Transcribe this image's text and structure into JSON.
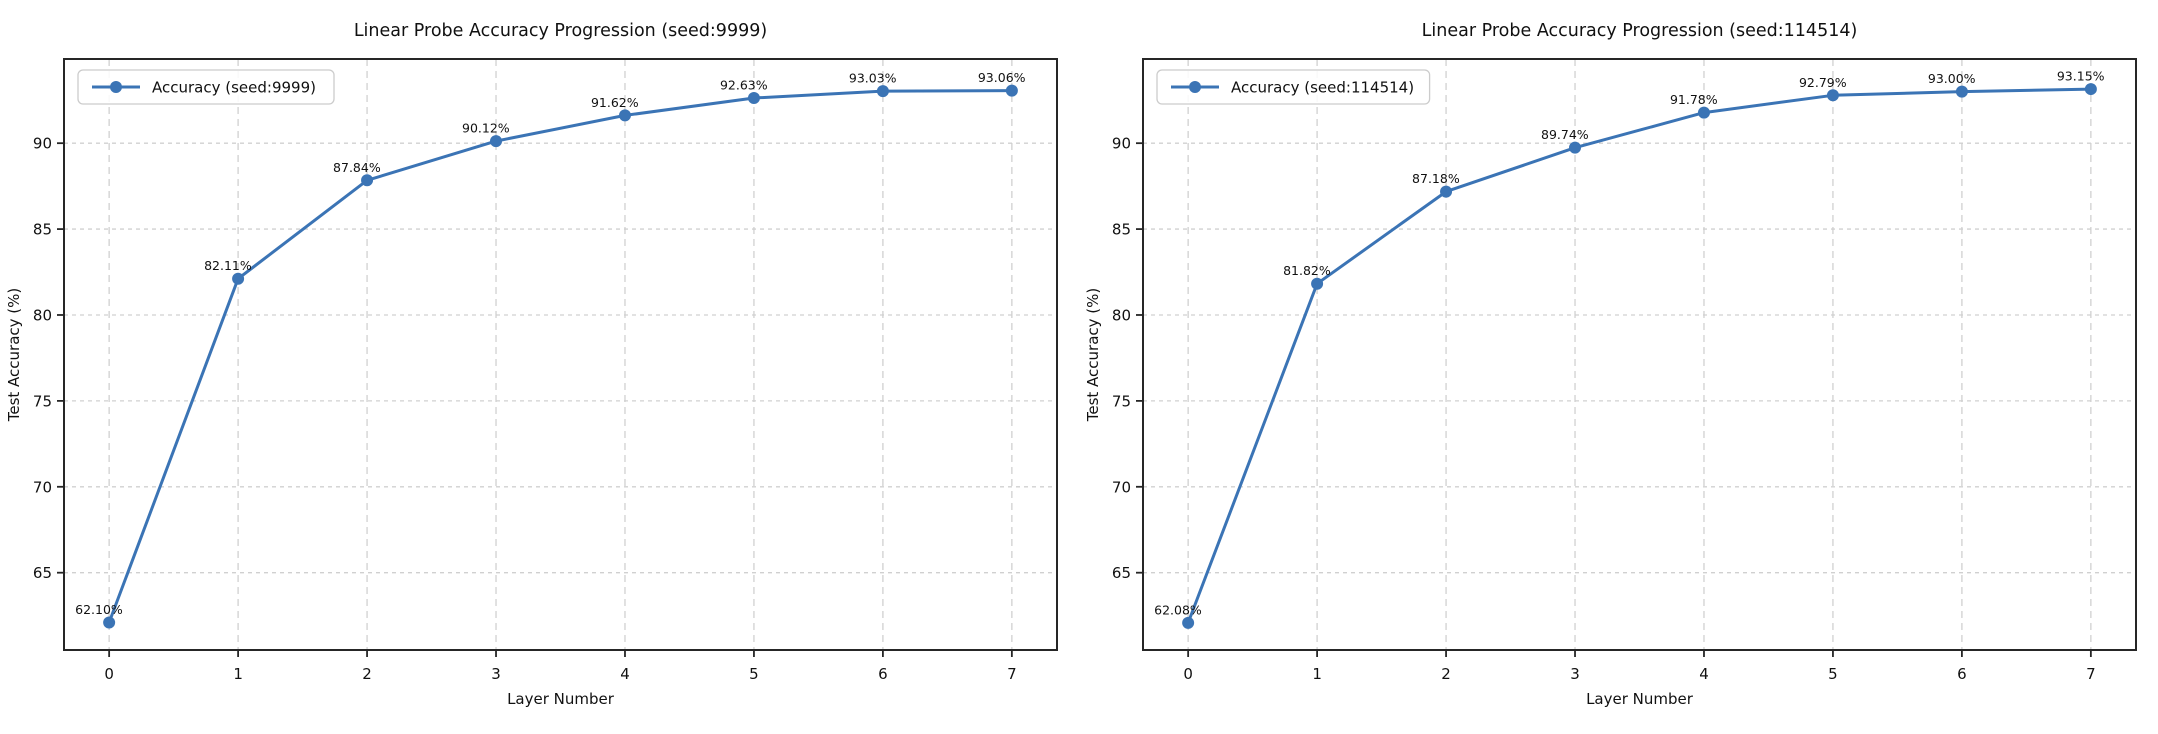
{
  "figure": {
    "background": "#ffffff"
  },
  "colors": {
    "line": "#3b74b5",
    "marker": "#3b74b5",
    "grid": "#d0d0d0",
    "spine": "#262626",
    "text": "#111111",
    "legend_border": "#cccccc",
    "legend_background": "#ffffff"
  },
  "chart_data": [
    {
      "type": "line",
      "title": "Linear Probe Accuracy Progression (seed:9999)",
      "xlabel": "Layer Number",
      "ylabel": "Test Accuracy (%)",
      "grid": true,
      "legend_position": "upper-left",
      "x": [
        0,
        1,
        2,
        3,
        4,
        5,
        6,
        7
      ],
      "xticks": [
        0,
        1,
        2,
        3,
        4,
        5,
        6,
        7
      ],
      "yticks": [
        65,
        70,
        75,
        80,
        85,
        90
      ],
      "xlim": [
        -0.35,
        7.35
      ],
      "ylim": [
        60.5,
        94.9
      ],
      "series": [
        {
          "name": "Accuracy (seed:9999)",
          "values": [
            62.1,
            82.11,
            87.84,
            90.12,
            91.62,
            92.63,
            93.03,
            93.06
          ]
        }
      ],
      "point_labels": [
        "62.10%",
        "82.11%",
        "87.84%",
        "90.12%",
        "91.62%",
        "92.63%",
        "93.03%",
        "93.06%"
      ]
    },
    {
      "type": "line",
      "title": "Linear Probe Accuracy Progression (seed:114514)",
      "xlabel": "Layer Number",
      "ylabel": "Test Accuracy (%)",
      "grid": true,
      "legend_position": "upper-left",
      "x": [
        0,
        1,
        2,
        3,
        4,
        5,
        6,
        7
      ],
      "xticks": [
        0,
        1,
        2,
        3,
        4,
        5,
        6,
        7
      ],
      "yticks": [
        65,
        70,
        75,
        80,
        85,
        90
      ],
      "xlim": [
        -0.35,
        7.35
      ],
      "ylim": [
        60.5,
        94.9
      ],
      "series": [
        {
          "name": "Accuracy (seed:114514)",
          "values": [
            62.08,
            81.82,
            87.18,
            89.74,
            91.78,
            92.79,
            93.0,
            93.15
          ]
        }
      ],
      "point_labels": [
        "62.08%",
        "81.82%",
        "87.18%",
        "89.74%",
        "91.78%",
        "92.79%",
        "93.00%",
        "93.15%"
      ]
    }
  ]
}
